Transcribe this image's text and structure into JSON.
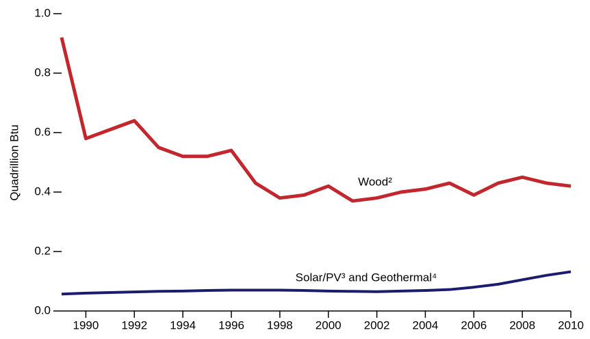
{
  "chart_data": {
    "type": "line",
    "y_label": "Quadrillion Btu",
    "x": [
      1989,
      1990,
      1991,
      1992,
      1993,
      1994,
      1995,
      1996,
      1997,
      1998,
      1999,
      2000,
      2001,
      2002,
      2003,
      2004,
      2005,
      2006,
      2007,
      2008,
      2009,
      2010
    ],
    "series": [
      {
        "name": "Wood²",
        "color": "#c1272d",
        "values": [
          0.92,
          0.58,
          0.61,
          0.64,
          0.55,
          0.52,
          0.52,
          0.54,
          0.43,
          0.38,
          0.39,
          0.42,
          0.37,
          0.38,
          0.4,
          0.41,
          0.43,
          0.39,
          0.43,
          0.45,
          0.43,
          0.42
        ]
      },
      {
        "name": "Solar/PV³ and Geothermal⁴",
        "color": "#1c1c6e",
        "values": [
          0.057,
          0.06,
          0.062,
          0.064,
          0.066,
          0.067,
          0.069,
          0.07,
          0.07,
          0.07,
          0.069,
          0.067,
          0.066,
          0.065,
          0.067,
          0.069,
          0.072,
          0.08,
          0.09,
          0.105,
          0.12,
          0.132
        ]
      }
    ],
    "xlim": [
      1989,
      2010
    ],
    "xticks": [
      1990,
      1992,
      1994,
      1996,
      1998,
      2000,
      2002,
      2004,
      2006,
      2008,
      2010
    ],
    "ylim": [
      0,
      1
    ],
    "yticks": [
      {
        "value": 0,
        "label": "0.0"
      },
      0.2,
      0.4,
      0.6,
      0.8,
      {
        "value": 1,
        "label": "1.0"
      }
    ]
  }
}
